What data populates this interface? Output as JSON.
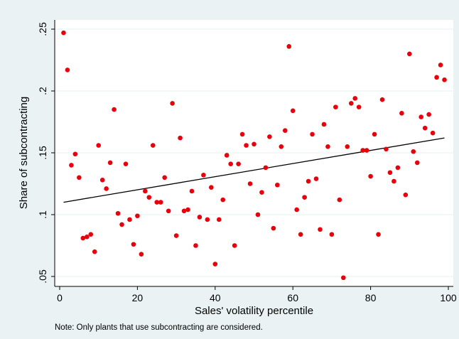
{
  "chart_data": {
    "type": "scatter",
    "xlabel": "Sales' volatility percentile",
    "ylabel": "Share of subcontracting",
    "note": "Note: Only plants that use subcontracting are considered.",
    "xlim": [
      0,
      100
    ],
    "ylim": [
      0.05,
      0.25
    ],
    "xticks": [
      0,
      20,
      40,
      60,
      80,
      100
    ],
    "xtick_labels": [
      "0",
      "20",
      "40",
      "60",
      "80",
      "100"
    ],
    "yticks": [
      0.05,
      0.1,
      0.15,
      0.2,
      0.25
    ],
    "ytick_labels": [
      ".05",
      ".1",
      ".15",
      ".2",
      ".25"
    ],
    "grid": "horizontal",
    "point_color": "#e8000b",
    "line_color": "#000000",
    "plot_background": "#ffffff",
    "outer_background": "#eaf2f3",
    "points": [
      [
        1,
        0.247
      ],
      [
        2,
        0.217
      ],
      [
        3,
        0.14
      ],
      [
        4,
        0.149
      ],
      [
        5,
        0.13
      ],
      [
        6,
        0.081
      ],
      [
        7,
        0.082
      ],
      [
        8,
        0.084
      ],
      [
        9,
        0.07
      ],
      [
        10,
        0.156
      ],
      [
        11,
        0.128
      ],
      [
        12,
        0.121
      ],
      [
        13,
        0.142
      ],
      [
        14,
        0.185
      ],
      [
        15,
        0.101
      ],
      [
        16,
        0.092
      ],
      [
        17,
        0.141
      ],
      [
        18,
        0.096
      ],
      [
        19,
        0.076
      ],
      [
        20,
        0.099
      ],
      [
        21,
        0.068
      ],
      [
        22,
        0.119
      ],
      [
        23,
        0.114
      ],
      [
        24,
        0.156
      ],
      [
        25,
        0.11
      ],
      [
        26,
        0.11
      ],
      [
        27,
        0.13
      ],
      [
        28,
        0.103
      ],
      [
        29,
        0.19
      ],
      [
        30,
        0.083
      ],
      [
        31,
        0.162
      ],
      [
        32,
        0.103
      ],
      [
        33,
        0.104
      ],
      [
        34,
        0.119
      ],
      [
        35,
        0.075
      ],
      [
        36,
        0.098
      ],
      [
        37,
        0.132
      ],
      [
        38,
        0.096
      ],
      [
        39,
        0.122
      ],
      [
        40,
        0.06
      ],
      [
        41,
        0.096
      ],
      [
        42,
        0.112
      ],
      [
        43,
        0.148
      ],
      [
        44,
        0.141
      ],
      [
        45,
        0.075
      ],
      [
        46,
        0.141
      ],
      [
        47,
        0.165
      ],
      [
        48,
        0.156
      ],
      [
        49,
        0.125
      ],
      [
        50,
        0.157
      ],
      [
        51,
        0.1
      ],
      [
        52,
        0.118
      ],
      [
        53,
        0.138
      ],
      [
        54,
        0.163
      ],
      [
        55,
        0.089
      ],
      [
        56,
        0.124
      ],
      [
        57,
        0.155
      ],
      [
        58,
        0.168
      ],
      [
        59,
        0.236
      ],
      [
        60,
        0.184
      ],
      [
        61,
        0.104
      ],
      [
        62,
        0.084
      ],
      [
        63,
        0.114
      ],
      [
        64,
        0.127
      ],
      [
        65,
        0.165
      ],
      [
        66,
        0.129
      ],
      [
        67,
        0.088
      ],
      [
        68,
        0.173
      ],
      [
        69,
        0.155
      ],
      [
        70,
        0.084
      ],
      [
        71,
        0.187
      ],
      [
        72,
        0.112
      ],
      [
        73,
        0.049
      ],
      [
        74,
        0.155
      ],
      [
        75,
        0.19
      ],
      [
        76,
        0.194
      ],
      [
        77,
        0.187
      ],
      [
        78,
        0.152
      ],
      [
        79,
        0.152
      ],
      [
        80,
        0.131
      ],
      [
        81,
        0.165
      ],
      [
        82,
        0.084
      ],
      [
        83,
        0.193
      ],
      [
        84,
        0.153
      ],
      [
        85,
        0.134
      ],
      [
        86,
        0.127
      ],
      [
        87,
        0.138
      ],
      [
        88,
        0.182
      ],
      [
        89,
        0.116
      ],
      [
        90,
        0.23
      ],
      [
        91,
        0.151
      ],
      [
        92,
        0.142
      ],
      [
        93,
        0.179
      ],
      [
        94,
        0.17
      ],
      [
        95,
        0.181
      ],
      [
        96,
        0.166
      ],
      [
        97,
        0.211
      ],
      [
        98,
        0.221
      ],
      [
        99,
        0.209
      ]
    ],
    "fit_line": {
      "x": [
        1,
        99
      ],
      "y": [
        0.11,
        0.162
      ]
    }
  }
}
